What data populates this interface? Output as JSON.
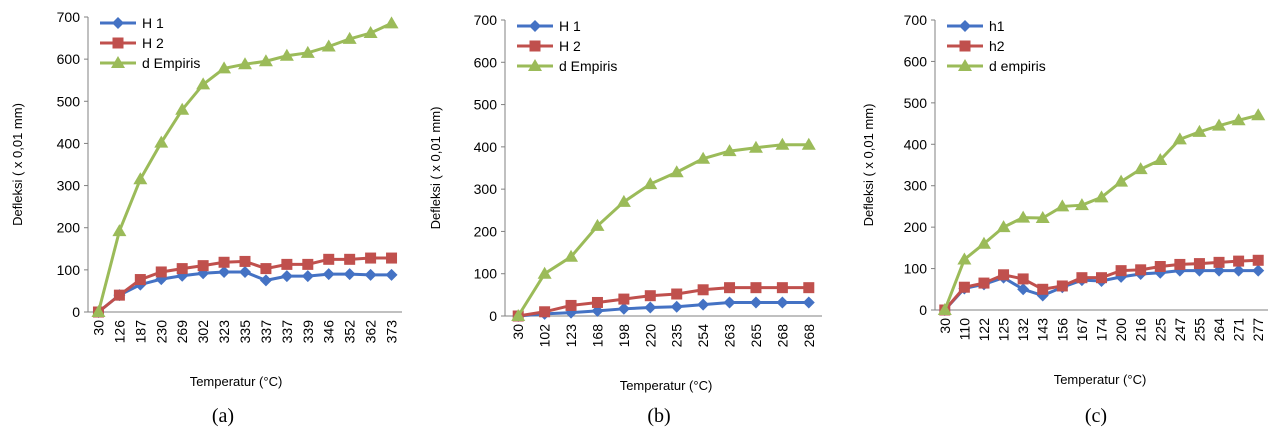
{
  "colors": {
    "h1": "#4472C4",
    "h2": "#C0504D",
    "emp": "#9BBB59",
    "axis": "#808080"
  },
  "chart_data": [
    {
      "type": "line",
      "caption": "(a)",
      "xlabel": "Temperatur (°C)",
      "ylabel": "Defleksi ( x 0,01 mm)",
      "ylim": [
        0,
        700
      ],
      "yticks": [
        "0",
        "100",
        "200",
        "300",
        "400",
        "500",
        "600",
        "700"
      ],
      "legend_position": "top-left",
      "categories": [
        "30",
        "126",
        "187",
        "230",
        "269",
        "302",
        "323",
        "335",
        "337",
        "337",
        "339",
        "346",
        "352",
        "362",
        "373"
      ],
      "series": [
        {
          "name": "H 1",
          "marker": "diamond",
          "values": [
            0,
            40,
            65,
            78,
            86,
            92,
            95,
            95,
            75,
            85,
            85,
            90,
            90,
            88,
            88
          ]
        },
        {
          "name": "H 2",
          "marker": "square",
          "values": [
            0,
            40,
            77,
            95,
            103,
            110,
            118,
            120,
            103,
            113,
            113,
            125,
            125,
            128,
            128
          ]
        },
        {
          "name": "d Empiris",
          "marker": "triangle",
          "values": [
            0,
            192,
            315,
            402,
            480,
            540,
            578,
            588,
            595,
            608,
            615,
            630,
            648,
            662,
            685
          ]
        }
      ]
    },
    {
      "type": "line",
      "caption": "(b)",
      "xlabel": "Temperatur (°C)",
      "ylabel": "Defleksi ( x 0,01 mm)",
      "ylim": [
        0,
        700
      ],
      "yticks": [
        "0",
        "100",
        "200",
        "300",
        "400",
        "500",
        "600",
        "700"
      ],
      "legend_position": "top-left",
      "categories": [
        "30",
        "102",
        "123",
        "168",
        "198",
        "220",
        "235",
        "254",
        "263",
        "265",
        "268",
        "268"
      ],
      "series": [
        {
          "name": "H 1",
          "marker": "diamond",
          "values": [
            0,
            5,
            8,
            12,
            17,
            20,
            22,
            27,
            32,
            32,
            32,
            32
          ]
        },
        {
          "name": "H 2",
          "marker": "square",
          "values": [
            0,
            10,
            25,
            32,
            40,
            48,
            52,
            62,
            67,
            67,
            67,
            67
          ]
        },
        {
          "name": "d Empiris",
          "marker": "triangle",
          "values": [
            0,
            100,
            140,
            213,
            270,
            312,
            340,
            372,
            390,
            398,
            405,
            405
          ]
        }
      ]
    },
    {
      "type": "line",
      "caption": "(c)",
      "xlabel": "Temperatur (°C)",
      "ylabel": "Defleksi ( x 0,01 mm)",
      "ylim": [
        0,
        700
      ],
      "yticks": [
        "0",
        "100",
        "200",
        "300",
        "400",
        "500",
        "600",
        "700"
      ],
      "legend_position": "top-left",
      "categories": [
        "30",
        "110",
        "122",
        "125",
        "132",
        "143",
        "156",
        "167",
        "174",
        "200",
        "216",
        "225",
        "247",
        "255",
        "264",
        "271",
        "277"
      ],
      "series": [
        {
          "name": "h1",
          "marker": "diamond",
          "values": [
            0,
            52,
            62,
            78,
            50,
            35,
            55,
            72,
            70,
            80,
            87,
            90,
            95,
            95,
            95,
            95,
            95
          ]
        },
        {
          "name": "h2",
          "marker": "square",
          "values": [
            0,
            55,
            65,
            85,
            75,
            50,
            58,
            78,
            78,
            95,
            97,
            105,
            110,
            112,
            115,
            118,
            120
          ]
        },
        {
          "name": "d empiris",
          "marker": "triangle",
          "values": [
            0,
            122,
            160,
            200,
            223,
            222,
            250,
            253,
            272,
            310,
            340,
            362,
            412,
            430,
            445,
            458,
            470
          ]
        }
      ]
    }
  ]
}
